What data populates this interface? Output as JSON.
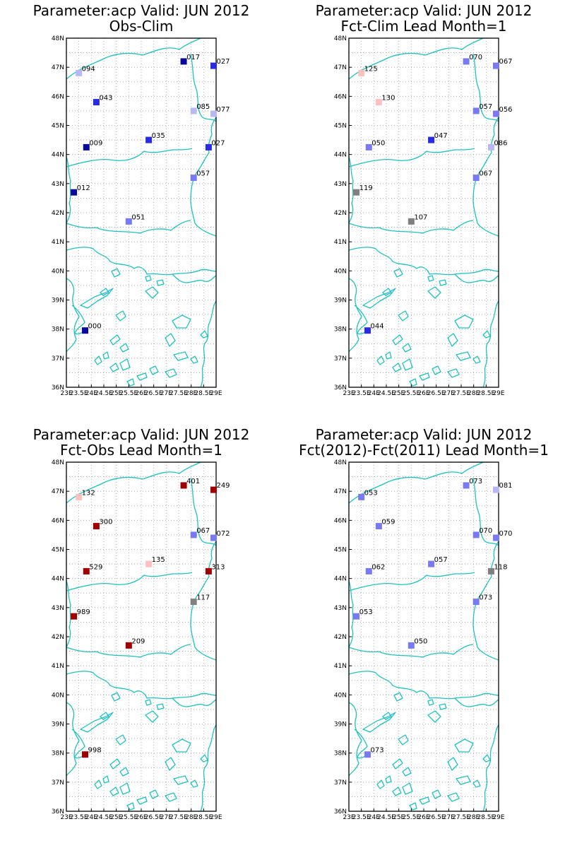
{
  "colors": {
    "coast": "#1fc2bf",
    "grid": "#9a9a9a",
    "dark_blue": "#0a0a9a",
    "blue": "#2a2ae0",
    "mid_blue": "#7a7af0",
    "light_blue": "#b8b8f5",
    "pink": "#ffc0c0",
    "dark_red": "#a00000",
    "gray": "#808080"
  },
  "axes": {
    "lat_labels": [
      "36N",
      "37N",
      "38N",
      "39N",
      "40N",
      "41N",
      "42N",
      "43N",
      "44N",
      "45N",
      "46N",
      "47N",
      "48N"
    ],
    "lon_labels": [
      "23E",
      "23.5E",
      "24E",
      "24.5E",
      "25E",
      "25.5E",
      "26E",
      "26.5E",
      "27E",
      "27.5E",
      "28E",
      "28.5E",
      "29E"
    ],
    "lat_range": [
      36,
      48
    ],
    "lon_range": [
      23,
      29
    ]
  },
  "panels": [
    {
      "title_line1": "Parameter:acp Valid: JUN 2012",
      "title_line2": "Obs-Clim",
      "stations": [
        {
          "lon": 23.5,
          "lat": 46.8,
          "label": "094",
          "color": "light_blue"
        },
        {
          "lon": 24.2,
          "lat": 45.8,
          "label": "043",
          "color": "blue"
        },
        {
          "lon": 23.8,
          "lat": 44.25,
          "label": "009",
          "color": "dark_blue"
        },
        {
          "lon": 23.3,
          "lat": 42.7,
          "label": "012",
          "color": "dark_blue"
        },
        {
          "lon": 25.5,
          "lat": 41.7,
          "label": "051",
          "color": "mid_blue"
        },
        {
          "lon": 26.3,
          "lat": 44.5,
          "label": "035",
          "color": "blue"
        },
        {
          "lon": 27.7,
          "lat": 47.2,
          "label": "017",
          "color": "dark_blue"
        },
        {
          "lon": 28.9,
          "lat": 47.05,
          "label": "027",
          "color": "blue"
        },
        {
          "lon": 28.1,
          "lat": 45.5,
          "label": "085",
          "color": "light_blue"
        },
        {
          "lon": 28.9,
          "lat": 45.4,
          "label": "077",
          "color": "light_blue"
        },
        {
          "lon": 28.7,
          "lat": 44.25,
          "label": "027",
          "color": "blue"
        },
        {
          "lon": 28.1,
          "lat": 43.2,
          "label": "057",
          "color": "mid_blue"
        },
        {
          "lon": 23.75,
          "lat": 37.95,
          "label": "000",
          "color": "dark_blue"
        }
      ]
    },
    {
      "title_line1": "Parameter:acp Valid: JUN 2012",
      "title_line2": "Fct-Clim Lead Month=1",
      "stations": [
        {
          "lon": 23.5,
          "lat": 46.8,
          "label": "125",
          "color": "pink"
        },
        {
          "lon": 24.2,
          "lat": 45.8,
          "label": "130",
          "color": "pink"
        },
        {
          "lon": 23.8,
          "lat": 44.25,
          "label": "050",
          "color": "mid_blue"
        },
        {
          "lon": 23.3,
          "lat": 42.7,
          "label": "119",
          "color": "gray"
        },
        {
          "lon": 25.5,
          "lat": 41.7,
          "label": "107",
          "color": "gray"
        },
        {
          "lon": 26.3,
          "lat": 44.5,
          "label": "047",
          "color": "blue"
        },
        {
          "lon": 27.7,
          "lat": 47.2,
          "label": "070",
          "color": "mid_blue"
        },
        {
          "lon": 28.9,
          "lat": 47.05,
          "label": "067",
          "color": "mid_blue"
        },
        {
          "lon": 28.1,
          "lat": 45.5,
          "label": "057",
          "color": "mid_blue"
        },
        {
          "lon": 28.9,
          "lat": 45.4,
          "label": "056",
          "color": "mid_blue"
        },
        {
          "lon": 28.7,
          "lat": 44.25,
          "label": "086",
          "color": "light_blue"
        },
        {
          "lon": 28.1,
          "lat": 43.2,
          "label": "067",
          "color": "mid_blue"
        },
        {
          "lon": 23.75,
          "lat": 37.95,
          "label": "044",
          "color": "blue"
        }
      ]
    },
    {
      "title_line1": "Parameter:acp Valid: JUN 2012",
      "title_line2": "Fct-Obs Lead Month=1",
      "stations": [
        {
          "lon": 23.5,
          "lat": 46.8,
          "label": "132",
          "color": "pink"
        },
        {
          "lon": 24.2,
          "lat": 45.8,
          "label": "300",
          "color": "dark_red"
        },
        {
          "lon": 23.8,
          "lat": 44.25,
          "label": "529",
          "color": "dark_red"
        },
        {
          "lon": 23.3,
          "lat": 42.7,
          "label": "989",
          "color": "dark_red"
        },
        {
          "lon": 25.5,
          "lat": 41.7,
          "label": "209",
          "color": "dark_red"
        },
        {
          "lon": 26.3,
          "lat": 44.5,
          "label": "135",
          "color": "pink"
        },
        {
          "lon": 27.7,
          "lat": 47.2,
          "label": "401",
          "color": "dark_red"
        },
        {
          "lon": 28.9,
          "lat": 47.05,
          "label": "249",
          "color": "dark_red"
        },
        {
          "lon": 28.1,
          "lat": 45.5,
          "label": "067",
          "color": "mid_blue"
        },
        {
          "lon": 28.9,
          "lat": 45.4,
          "label": "072",
          "color": "mid_blue"
        },
        {
          "lon": 28.7,
          "lat": 44.25,
          "label": "313",
          "color": "dark_red"
        },
        {
          "lon": 28.1,
          "lat": 43.2,
          "label": "117",
          "color": "gray"
        },
        {
          "lon": 23.75,
          "lat": 37.95,
          "label": "998",
          "color": "dark_red"
        }
      ]
    },
    {
      "title_line1": "Parameter:acp Valid: JUN 2012",
      "title_line2": "Fct(2012)-Fct(2011) Lead Month=1",
      "stations": [
        {
          "lon": 23.5,
          "lat": 46.8,
          "label": "053",
          "color": "mid_blue"
        },
        {
          "lon": 24.2,
          "lat": 45.8,
          "label": "059",
          "color": "mid_blue"
        },
        {
          "lon": 23.8,
          "lat": 44.25,
          "label": "062",
          "color": "mid_blue"
        },
        {
          "lon": 23.3,
          "lat": 42.7,
          "label": "053",
          "color": "mid_blue"
        },
        {
          "lon": 25.5,
          "lat": 41.7,
          "label": "050",
          "color": "mid_blue"
        },
        {
          "lon": 26.3,
          "lat": 44.5,
          "label": "057",
          "color": "mid_blue"
        },
        {
          "lon": 27.7,
          "lat": 47.2,
          "label": "073",
          "color": "mid_blue"
        },
        {
          "lon": 28.9,
          "lat": 47.05,
          "label": "081",
          "color": "light_blue"
        },
        {
          "lon": 28.1,
          "lat": 45.5,
          "label": "070",
          "color": "mid_blue"
        },
        {
          "lon": 28.9,
          "lat": 45.4,
          "label": "070",
          "color": "mid_blue"
        },
        {
          "lon": 28.7,
          "lat": 44.25,
          "label": "118",
          "color": "gray"
        },
        {
          "lon": 28.1,
          "lat": 43.2,
          "label": "073",
          "color": "mid_blue"
        },
        {
          "lon": 23.75,
          "lat": 37.95,
          "label": "073",
          "color": "mid_blue"
        }
      ]
    }
  ]
}
